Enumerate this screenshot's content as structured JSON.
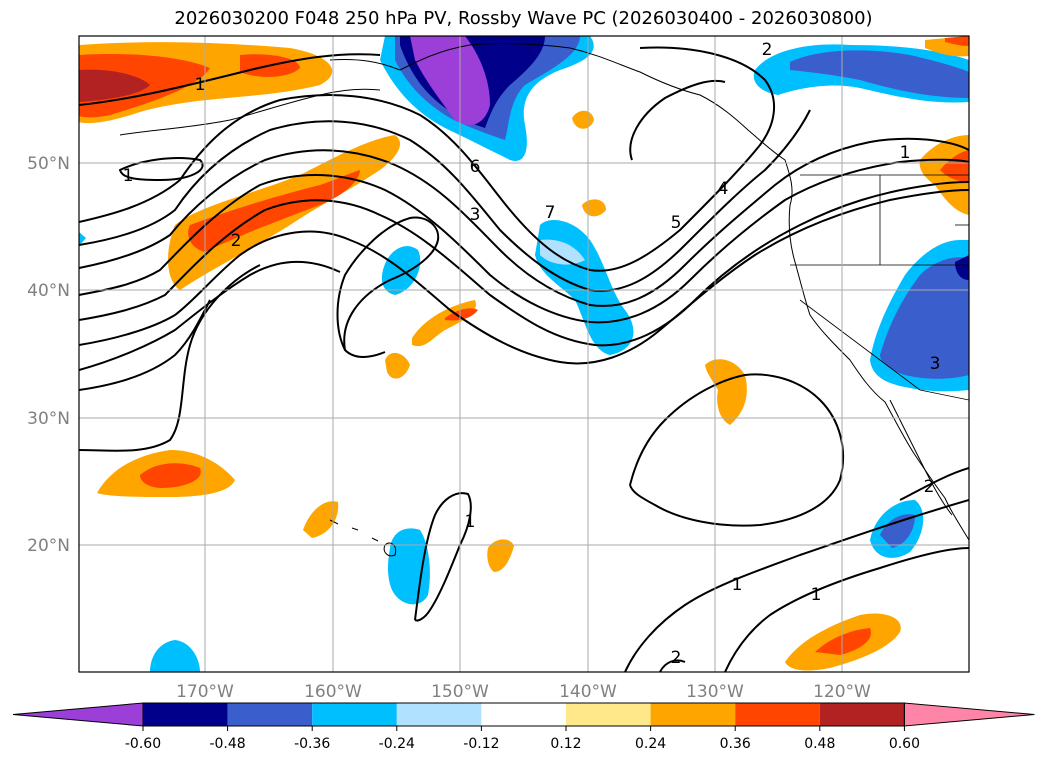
{
  "title": "2026030200 F048 250 hPa PV, Rossby Wave PC (2026030400 - 2026030800)",
  "map": {
    "projection": "PlateCarree",
    "lon_range": [
      -180,
      -110
    ],
    "lat_range": [
      10,
      60
    ],
    "lon_labels": [
      "170°W",
      "160°W",
      "150°W",
      "140°W",
      "130°W",
      "120°W"
    ],
    "lat_labels": [
      "50°N",
      "40°N",
      "30°N",
      "20°N"
    ],
    "gridlines": true,
    "grid_color": "#aaaaaa"
  },
  "contour_labels": [
    "1",
    "2",
    "2",
    "1",
    "6",
    "3",
    "7",
    "5",
    "4",
    "1",
    "1",
    "3",
    "2",
    "1",
    "1",
    "2"
  ],
  "colorbar": {
    "ticks": [
      "-0.60",
      "-0.48",
      "-0.36",
      "-0.24",
      "-0.12",
      "0.12",
      "0.24",
      "0.36",
      "0.48",
      "0.60"
    ],
    "colors": [
      "#9b3fd8",
      "#00008b",
      "#3a5fcd",
      "#00bfff",
      "#b0e2ff",
      "#ffffff",
      "#ffe88a",
      "#ffa500",
      "#ff4500",
      "#b22222",
      "#ff85a8"
    ],
    "extend": "both"
  }
}
